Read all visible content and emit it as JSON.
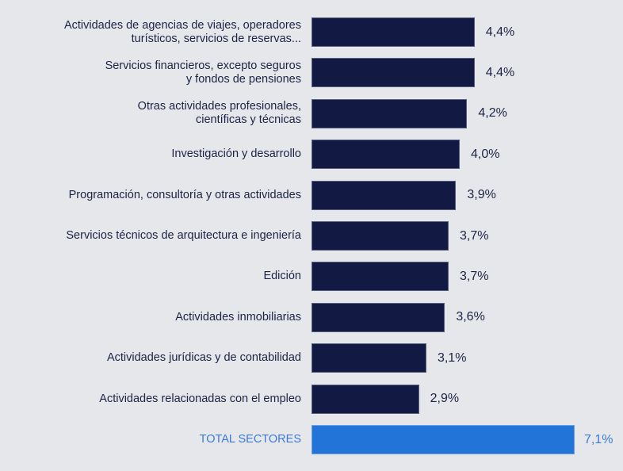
{
  "chart_data": {
    "type": "bar",
    "orientation": "horizontal",
    "title": "",
    "xlabel": "",
    "ylabel": "",
    "xlim": [
      0,
      7.1
    ],
    "grid": false,
    "categories": [
      [
        "Actividades de agencias de viajes, operadores",
        "turísticos, servicios de reservas..."
      ],
      [
        "Servicios financieros, excepto seguros",
        "y fondos de pensiones"
      ],
      [
        "Otras actividades profesionales,",
        "científicas y técnicas"
      ],
      [
        "Investigación y desarrollo"
      ],
      [
        "Programación, consultoría y otras actividades"
      ],
      [
        "Servicios técnicos de arquitectura e ingeniería"
      ],
      [
        "Edición"
      ],
      [
        "Actividades inmobiliarias"
      ],
      [
        "Actividades jurídicas y de contabilidad"
      ],
      [
        "Actividades relacionadas con el empleo"
      ],
      [
        "TOTAL SECTORES"
      ]
    ],
    "values": [
      4.4,
      4.4,
      4.2,
      4.0,
      3.9,
      3.7,
      3.7,
      3.6,
      3.1,
      2.9,
      7.1
    ],
    "value_labels": [
      "4,4%",
      "4,4%",
      "4,2%",
      "4,0%",
      "3,9%",
      "3,7%",
      "3,7%",
      "3,6%",
      "3,1%",
      "2,9%",
      "7,1%"
    ],
    "highlight_index": 10,
    "colors": {
      "bar": "#121a44",
      "highlight": "#2274d9",
      "text": "#1c2344",
      "highlight_text": "#3d7ad8",
      "background": "#e6e7eb"
    }
  }
}
